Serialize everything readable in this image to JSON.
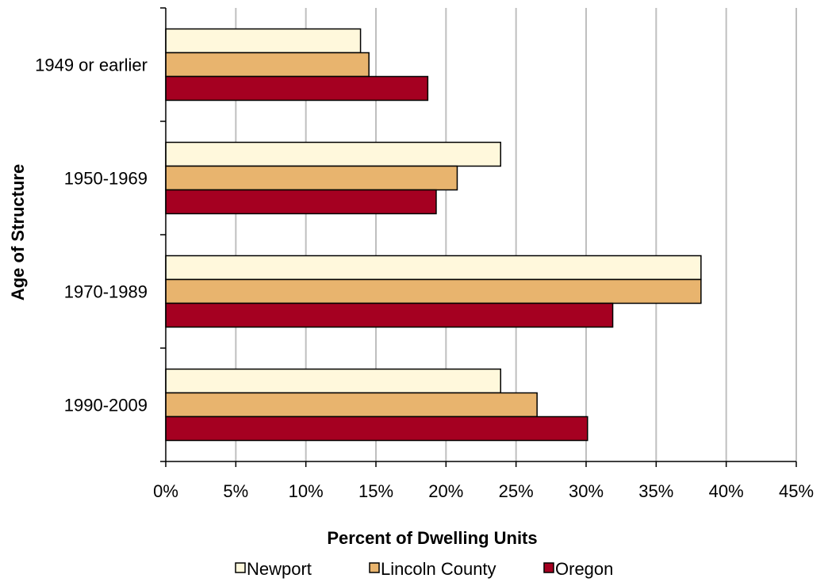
{
  "chart_data": {
    "type": "bar",
    "orientation": "horizontal",
    "title": "",
    "xlabel": "Percent of Dwelling Units",
    "ylabel": "Age of Structure",
    "categories": [
      "1949 or earlier",
      "1950-1969",
      "1970-1989",
      "1990-2009"
    ],
    "series": [
      {
        "name": "Newport",
        "color": "#FFF8DC",
        "values": [
          13.9,
          23.9,
          38.2,
          23.9
        ]
      },
      {
        "name": "Lincoln County",
        "color": "#E8B46E",
        "values": [
          14.5,
          20.8,
          38.2,
          26.5
        ]
      },
      {
        "name": "Oregon",
        "color": "#A50021",
        "values": [
          18.7,
          19.3,
          31.9,
          30.1
        ]
      }
    ],
    "xlim": [
      0,
      45
    ],
    "x_ticks": [
      "0%",
      "5%",
      "10%",
      "15%",
      "20%",
      "25%",
      "30%",
      "35%",
      "40%",
      "45%"
    ],
    "grid": "vertical",
    "legend_position": "bottom"
  }
}
